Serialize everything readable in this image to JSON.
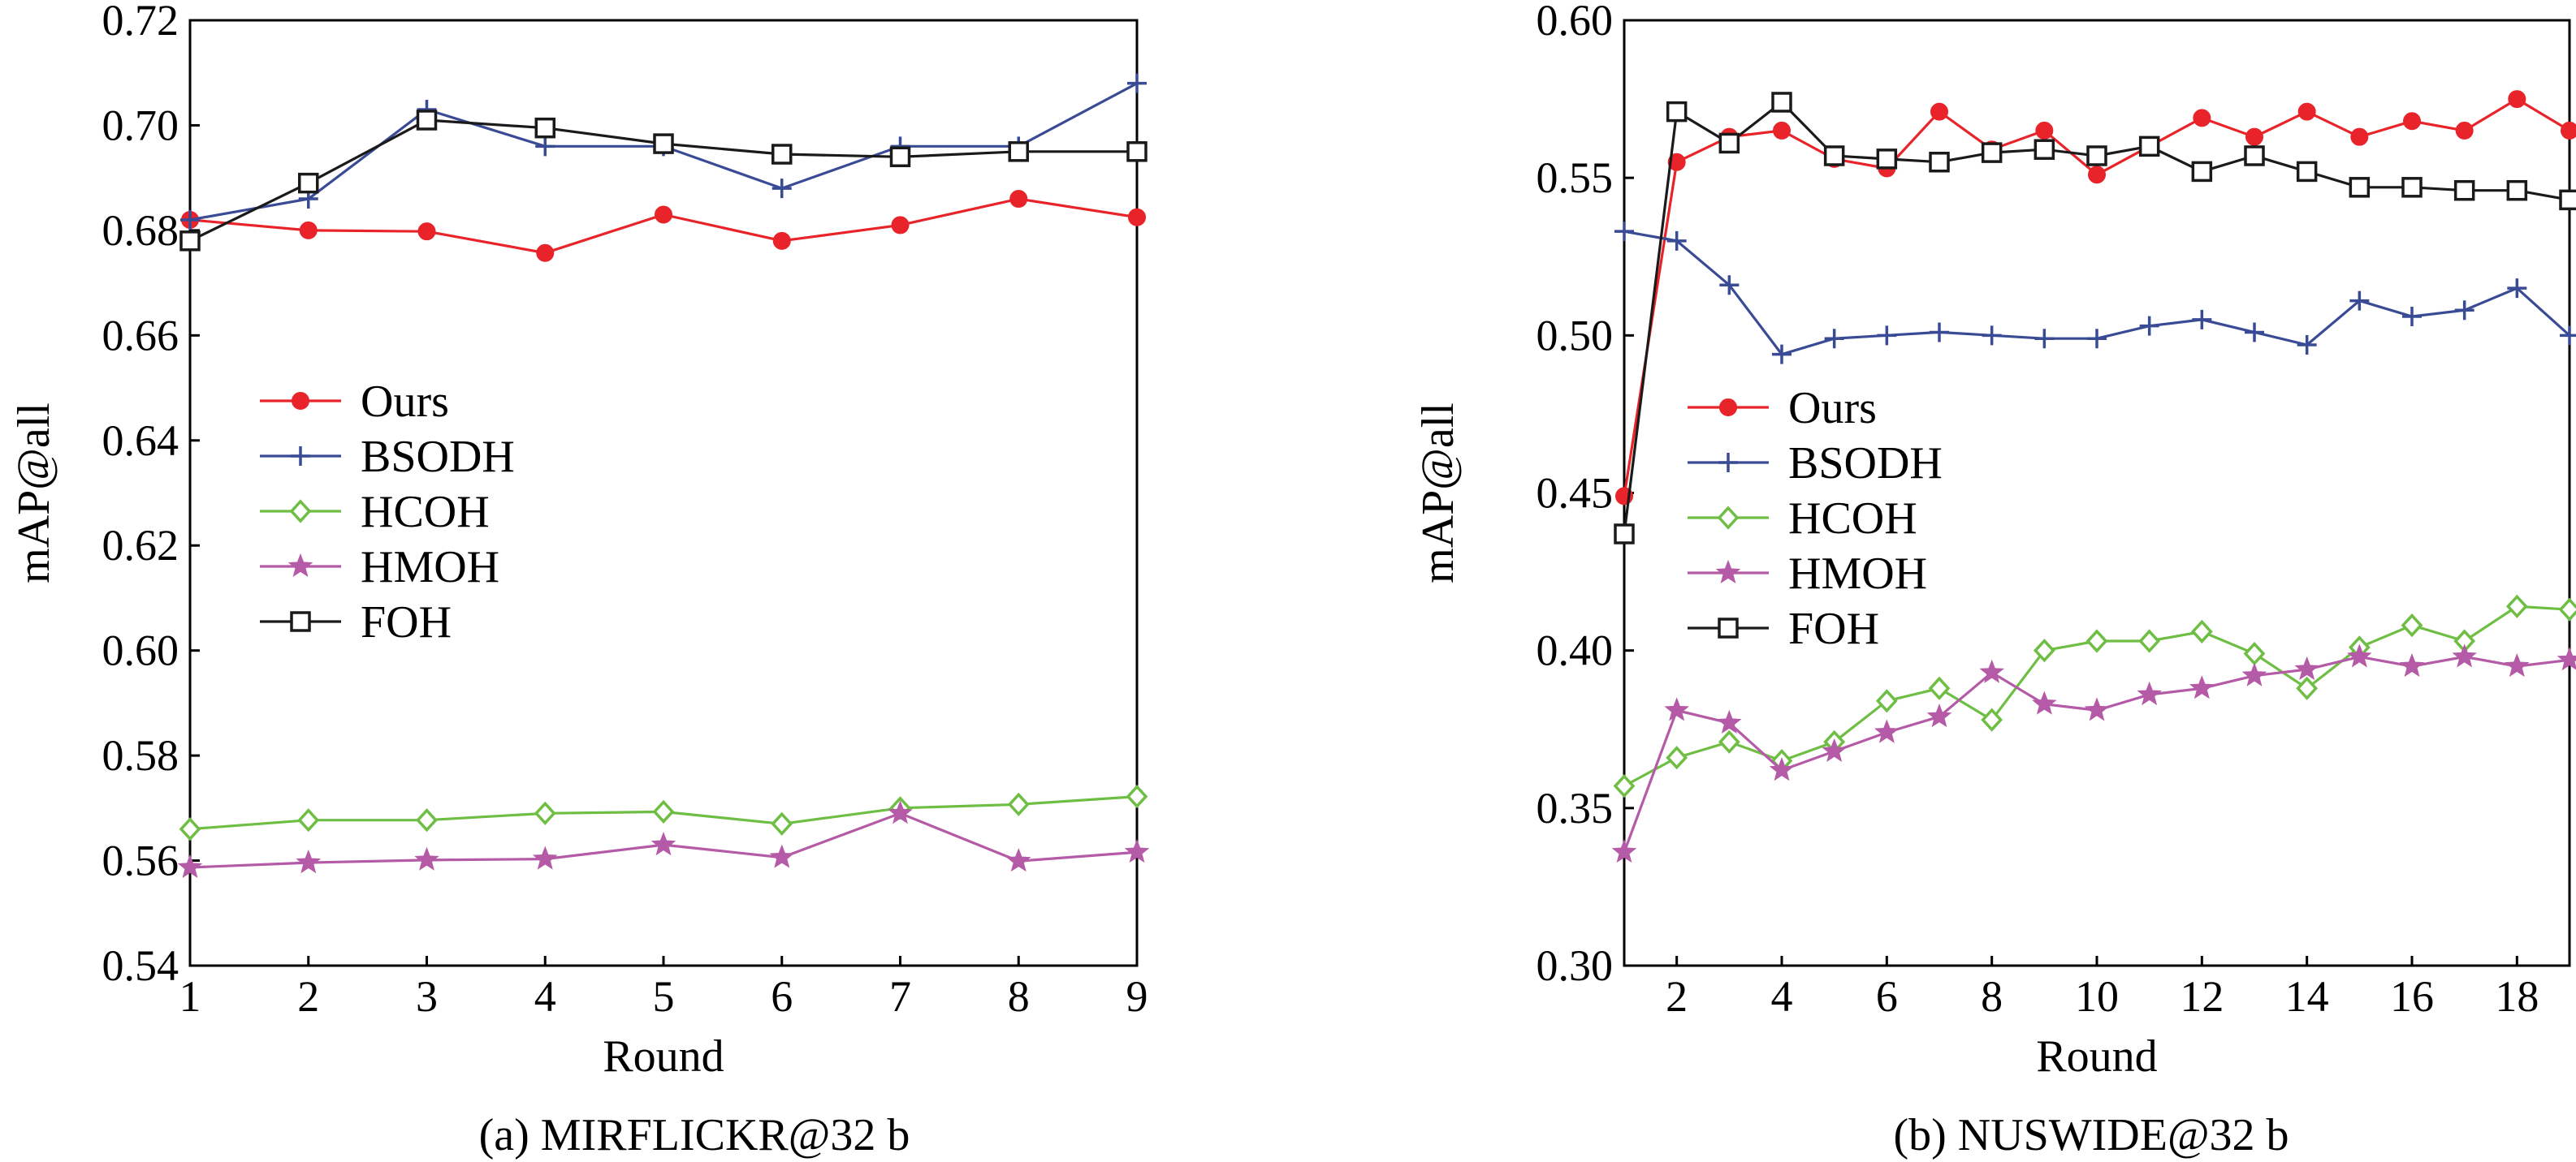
{
  "chart_data": [
    {
      "type": "line",
      "caption": "(a) MIRFLICKR@32 b",
      "xlabel": "Round",
      "ylabel": "mAP@all",
      "xlim": [
        1,
        9
      ],
      "ylim": [
        0.54,
        0.72
      ],
      "xticks": [
        1,
        2,
        3,
        4,
        5,
        6,
        7,
        8,
        9
      ],
      "yticks": [
        "0.54",
        "0.56",
        "0.58",
        "0.60",
        "0.62",
        "0.64",
        "0.66",
        "0.68",
        "0.70",
        "0.72"
      ],
      "grid": false,
      "legend_position": "center-left",
      "x": [
        1,
        2,
        3,
        4,
        5,
        6,
        7,
        8,
        9
      ],
      "series": [
        {
          "name": "Ours",
          "color": "#e8242a",
          "marker": "circle-filled",
          "values": [
            0.682,
            0.68,
            0.6798,
            0.6757,
            0.683,
            0.678,
            0.681,
            0.686,
            0.6825
          ]
        },
        {
          "name": "BSODH",
          "color": "#3a4b96",
          "marker": "plus",
          "values": [
            0.682,
            0.686,
            0.703,
            0.696,
            0.696,
            0.688,
            0.696,
            0.696,
            0.708
          ]
        },
        {
          "name": "HCOH",
          "color": "#6fbe44",
          "marker": "diamond-open",
          "values": [
            0.566,
            0.5677,
            0.5677,
            0.569,
            0.5693,
            0.567,
            0.57,
            0.5707,
            0.5722
          ]
        },
        {
          "name": "HMOH",
          "color": "#b45aa6",
          "marker": "star-filled",
          "values": [
            0.5587,
            0.5596,
            0.5601,
            0.5603,
            0.563,
            0.5606,
            0.569,
            0.5599,
            0.5616
          ]
        },
        {
          "name": "FOH",
          "color": "#1a1a1a",
          "marker": "square-open",
          "values": [
            0.678,
            0.689,
            0.701,
            0.6995,
            0.6965,
            0.6945,
            0.694,
            0.695,
            0.695
          ]
        }
      ]
    },
    {
      "type": "line",
      "caption": "(b) NUSWIDE@32 b",
      "xlabel": "Round",
      "ylabel": "mAP@all",
      "xlim": [
        1,
        19
      ],
      "ylim": [
        0.3,
        0.6
      ],
      "xticks": [
        2,
        4,
        6,
        8,
        10,
        12,
        14,
        16,
        18
      ],
      "yticks": [
        "0.30",
        "0.35",
        "0.40",
        "0.45",
        "0.50",
        "0.55",
        "0.60"
      ],
      "grid": false,
      "legend_position": "center-left",
      "x": [
        1,
        2,
        3,
        4,
        5,
        6,
        7,
        8,
        9,
        10,
        11,
        12,
        13,
        14,
        15,
        16,
        17,
        18,
        19
      ],
      "series": [
        {
          "name": "Ours",
          "color": "#e8242a",
          "marker": "circle-filled",
          "values": [
            0.449,
            0.555,
            0.563,
            0.565,
            0.556,
            0.553,
            0.571,
            0.559,
            0.565,
            0.551,
            0.56,
            0.569,
            0.563,
            0.571,
            0.563,
            0.568,
            0.565,
            0.575,
            0.565
          ]
        },
        {
          "name": "BSODH",
          "color": "#3a4b96",
          "marker": "plus",
          "values": [
            0.533,
            0.53,
            0.516,
            0.494,
            0.499,
            0.5,
            0.501,
            0.5,
            0.499,
            0.499,
            0.503,
            0.505,
            0.501,
            0.497,
            0.511,
            0.506,
            0.508,
            0.515,
            0.5
          ]
        },
        {
          "name": "HCOH",
          "color": "#6fbe44",
          "marker": "diamond-open",
          "values": [
            0.357,
            0.366,
            0.371,
            0.365,
            0.371,
            0.384,
            0.388,
            0.378,
            0.4,
            0.403,
            0.403,
            0.406,
            0.399,
            0.388,
            0.401,
            0.408,
            0.403,
            0.414,
            0.413
          ]
        },
        {
          "name": "HMOH",
          "color": "#b45aa6",
          "marker": "star-filled",
          "values": [
            0.336,
            0.381,
            0.377,
            0.362,
            0.368,
            0.374,
            0.379,
            0.393,
            0.383,
            0.381,
            0.386,
            0.388,
            0.392,
            0.394,
            0.398,
            0.395,
            0.398,
            0.395,
            0.397
          ]
        },
        {
          "name": "FOH",
          "color": "#1a1a1a",
          "marker": "square-open",
          "values": [
            0.437,
            0.571,
            0.561,
            0.574,
            0.557,
            0.556,
            0.555,
            0.558,
            0.559,
            0.557,
            0.56,
            0.552,
            0.557,
            0.552,
            0.547,
            0.547,
            0.546,
            0.546,
            0.543
          ]
        }
      ]
    }
  ]
}
